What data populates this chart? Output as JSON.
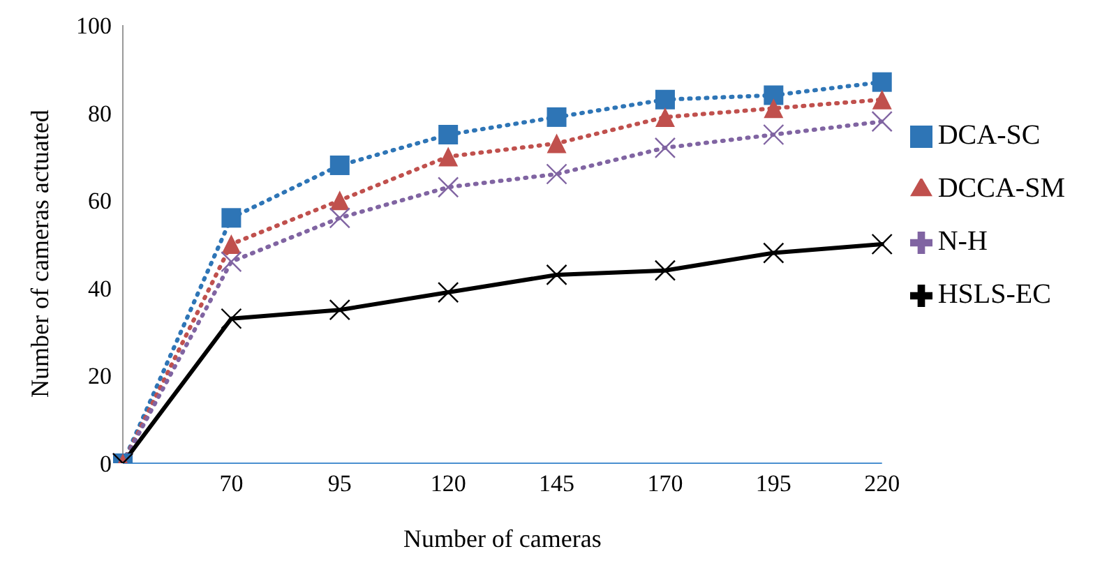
{
  "chart_data": {
    "type": "line",
    "xlabel": "Number of cameras",
    "ylabel": "Number of cameras actuated",
    "categories": [
      null,
      "70",
      "95",
      "120",
      "145",
      "170",
      "195",
      "220"
    ],
    "ylim": [
      0,
      100
    ],
    "yticks": [
      0,
      20,
      40,
      60,
      80,
      100
    ],
    "grid": false,
    "legend": "right",
    "series": [
      {
        "name": "DCA-SC",
        "color": "#2e75b6",
        "marker": "square",
        "line_style": "dotted",
        "values": [
          0,
          56,
          68,
          75,
          79,
          83,
          84,
          87
        ]
      },
      {
        "name": "DCCA-SM",
        "color": "#c0504d",
        "marker": "triangle",
        "line_style": "dotted",
        "values": [
          0,
          50,
          60,
          70,
          73,
          79,
          81,
          83
        ]
      },
      {
        "name": "N-H",
        "color": "#8064a2",
        "marker": "cross",
        "line_style": "dotted",
        "values": [
          0,
          46,
          56,
          63,
          66,
          72,
          75,
          78
        ]
      },
      {
        "name": "HSLS-EC",
        "color": "#000000",
        "marker": "cross",
        "line_style": "solid",
        "values": [
          0,
          33,
          35,
          39,
          43,
          44,
          48,
          50
        ]
      }
    ]
  }
}
